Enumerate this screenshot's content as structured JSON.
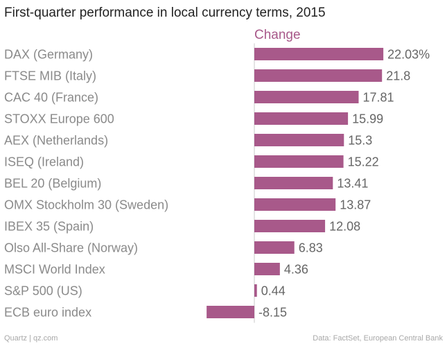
{
  "colors": {
    "bar": "#a8598a",
    "header": "#a8598a",
    "category_text": "#8a8a8a",
    "value_text": "#666666",
    "axis": "#c8c8c8",
    "title": "#222222",
    "footer": "#a8a8a8"
  },
  "footer": {
    "source_left": "Quartz | qz.com",
    "source_right": "Data: FactSet, European Central Bank"
  },
  "chart_data": {
    "type": "bar",
    "orientation": "horizontal",
    "title": "First-quarter performance in local currency terms, 2015",
    "series_label": "Change",
    "xlim": [
      -9,
      24
    ],
    "grid": false,
    "categories": [
      "DAX (Germany)",
      "FTSE MIB (Italy)",
      "CAC 40 (France)",
      "STOXX Europe 600",
      "AEX (Netherlands)",
      "ISEQ (Ireland)",
      "BEL 20 (Belgium)",
      "OMX Stockholm 30 (Sweden)",
      "IBEX 35 (Spain)",
      "Olso All-Share (Norway)",
      "MSCI World Index",
      "S&P 500 (US)",
      "ECB euro index"
    ],
    "values": [
      22.03,
      21.8,
      17.81,
      15.99,
      15.3,
      15.22,
      13.41,
      13.87,
      12.08,
      6.83,
      4.36,
      0.44,
      -8.15
    ],
    "value_labels": [
      "22.03%",
      "21.8",
      "17.81",
      "15.99",
      "15.3",
      "15.22",
      "13.41",
      "13.87",
      "12.08",
      "6.83",
      "4.36",
      "0.44",
      "-8.15"
    ]
  }
}
